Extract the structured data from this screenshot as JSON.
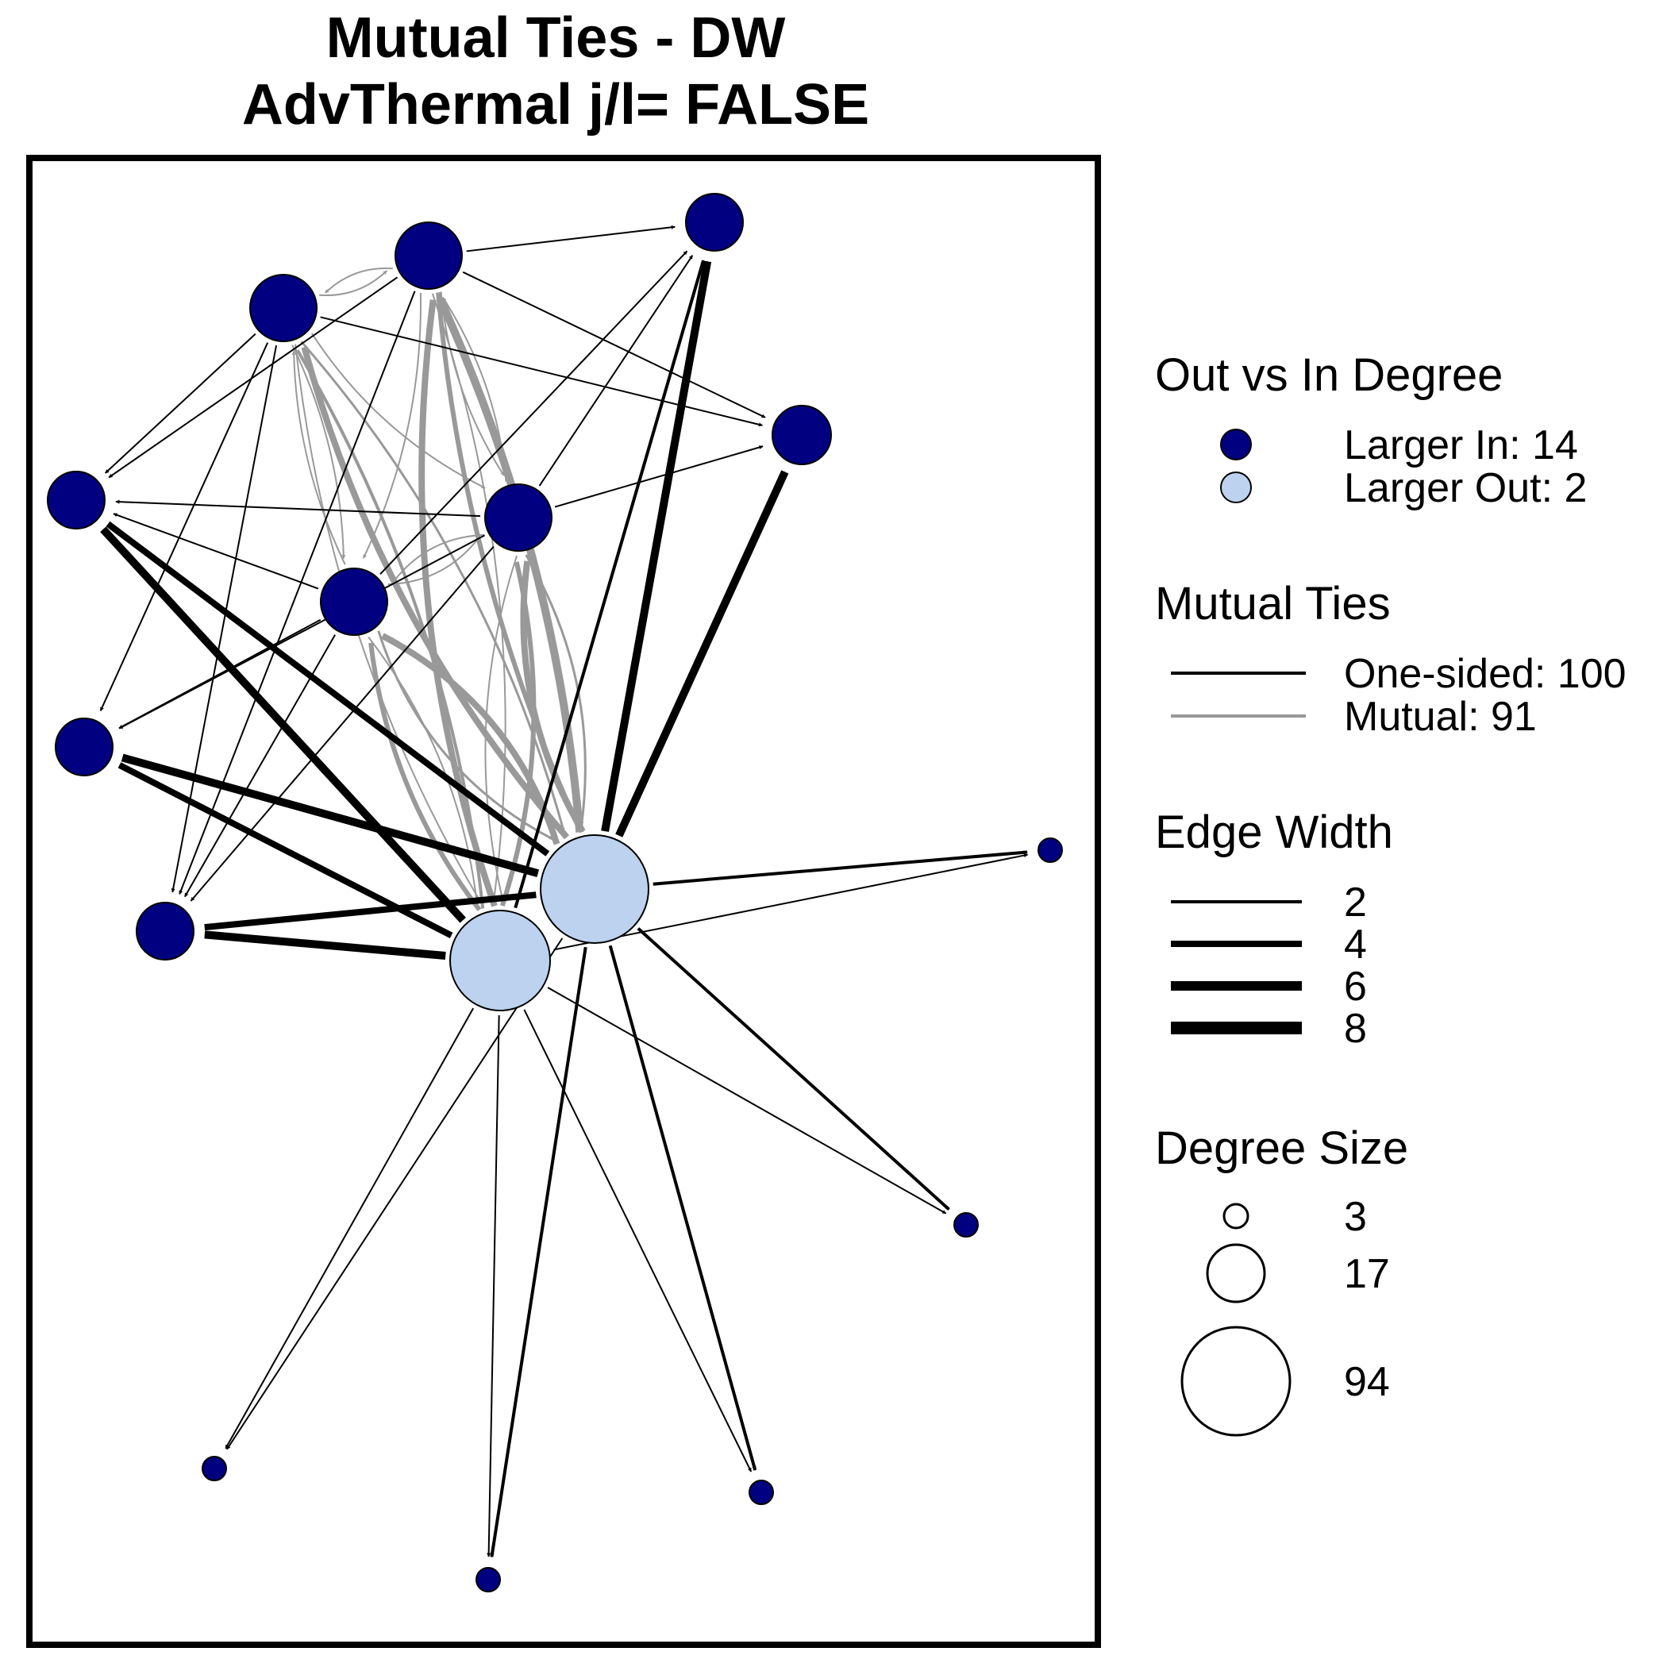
{
  "title_line1": "Mutual Ties - DW",
  "title_line2": "AdvThermal j/l=  FALSE",
  "colors": {
    "larger_in": "#000080",
    "larger_out": "#bcd2ee",
    "one_sided": "#000000",
    "mutual": "#999999"
  },
  "legend": {
    "out_vs_in": {
      "title": "Out vs In Degree",
      "larger_in_label": "Larger In:  14",
      "larger_out_label": "Larger Out: 2"
    },
    "mutual_ties": {
      "title": "Mutual Ties",
      "one_sided_label": "One-sided: 100",
      "mutual_label": "Mutual: 91"
    },
    "edge_width": {
      "title": "Edge Width",
      "labels": [
        "2",
        "4",
        "6",
        "8"
      ]
    },
    "degree_size": {
      "title": "Degree Size",
      "labels": [
        "3",
        "17",
        "94"
      ]
    }
  }
}
